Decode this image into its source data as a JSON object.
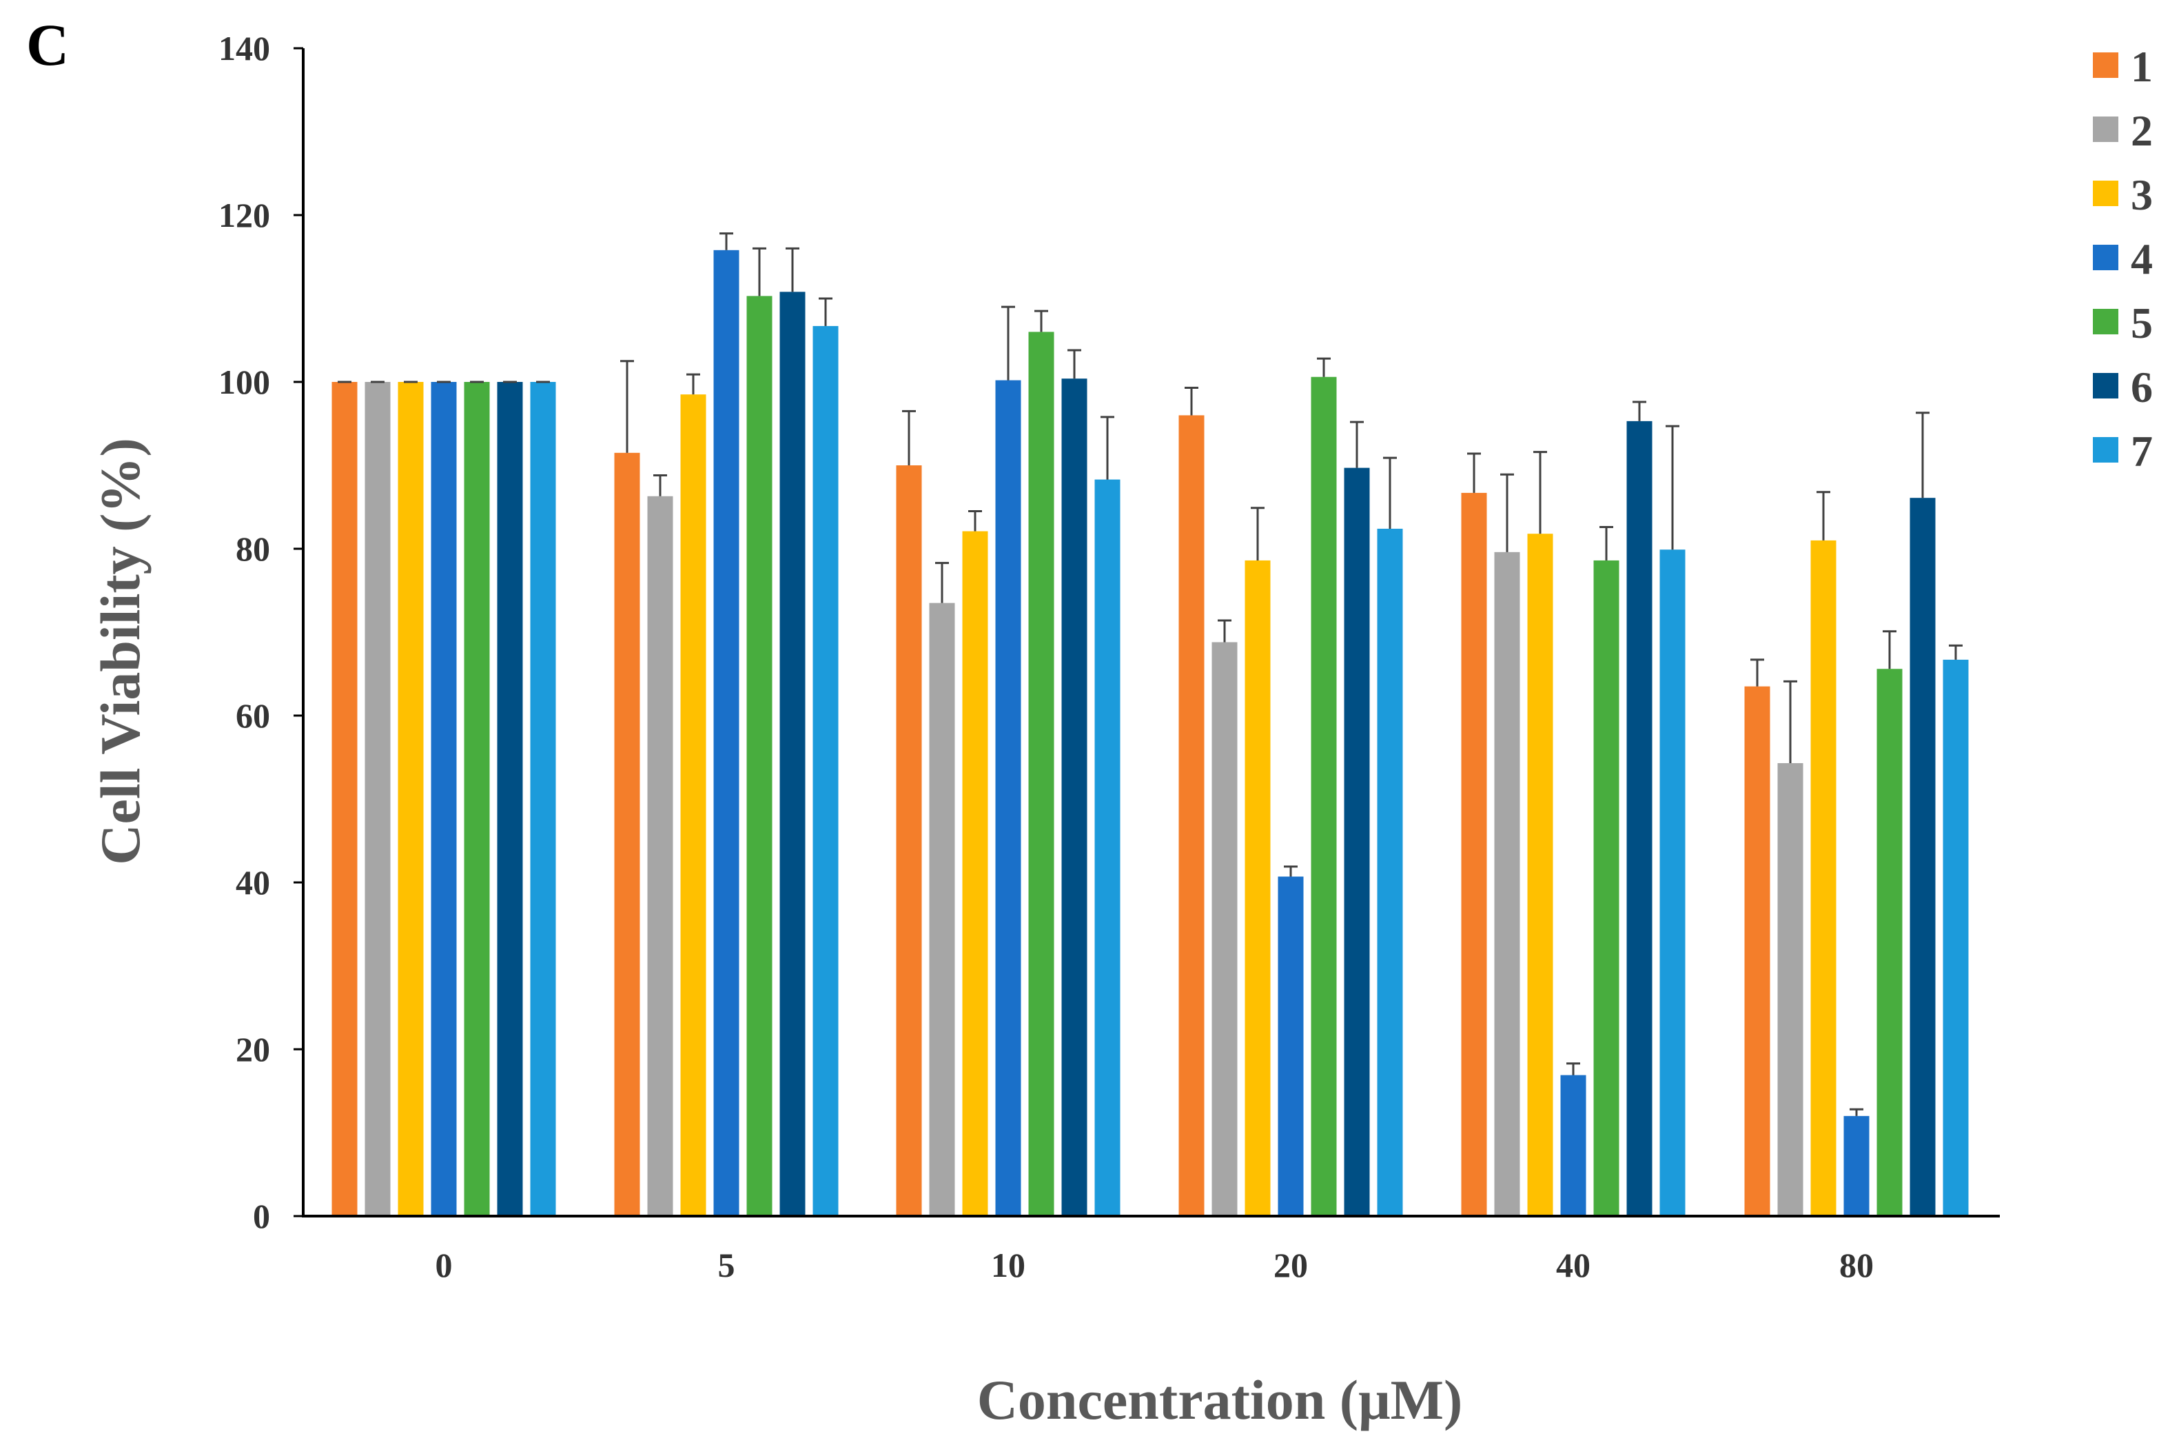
{
  "panel_label": "C",
  "chart_data": {
    "type": "bar",
    "title": "",
    "xlabel": "Concentration (μM)",
    "ylabel": "Cell Viability (%)",
    "ylim": [
      0,
      140
    ],
    "yticks": [
      0,
      20,
      40,
      60,
      80,
      100,
      120,
      140
    ],
    "ytick_labels": [
      "0",
      "20",
      "40",
      "60",
      "80",
      "100",
      "120",
      "140"
    ],
    "grid": false,
    "legend_position": "top-right",
    "categories": [
      "0",
      "5",
      "10",
      "20",
      "40",
      "80"
    ],
    "series": [
      {
        "name": "1",
        "color": "#F47E2A",
        "values": [
          100,
          91.5,
          90,
          96,
          86.7,
          63.5
        ],
        "errors": [
          0,
          11,
          6.5,
          3.3,
          4.7,
          3.2
        ]
      },
      {
        "name": "2",
        "color": "#A6A6A6",
        "values": [
          100,
          86.3,
          73.5,
          68.8,
          79.6,
          54.3
        ],
        "errors": [
          0,
          2.5,
          4.8,
          2.6,
          9.3,
          9.8
        ]
      },
      {
        "name": "3",
        "color": "#FFC000",
        "values": [
          100,
          98.5,
          82.1,
          78.6,
          81.8,
          81
        ],
        "errors": [
          0,
          2.4,
          2.4,
          6.3,
          9.8,
          5.8
        ]
      },
      {
        "name": "4",
        "color": "#1A70C9",
        "values": [
          100,
          115.8,
          100.2,
          40.7,
          16.9,
          12
        ],
        "errors": [
          0,
          2,
          8.8,
          1.2,
          1.4,
          0.8
        ]
      },
      {
        "name": "5",
        "color": "#48AD3E",
        "values": [
          100,
          110.3,
          106,
          100.6,
          78.6,
          65.6
        ],
        "errors": [
          0,
          5.7,
          2.5,
          2.2,
          4,
          4.5
        ]
      },
      {
        "name": "6",
        "color": "#004F84",
        "values": [
          100,
          110.8,
          100.4,
          89.7,
          95.3,
          86.1
        ],
        "errors": [
          0,
          5.2,
          3.4,
          5.5,
          2.3,
          10.2
        ]
      },
      {
        "name": "7",
        "color": "#1C9BDB",
        "values": [
          100,
          106.7,
          88.3,
          82.4,
          79.9,
          66.7
        ],
        "errors": [
          0,
          3.3,
          7.5,
          8.5,
          14.8,
          1.7
        ]
      }
    ]
  }
}
